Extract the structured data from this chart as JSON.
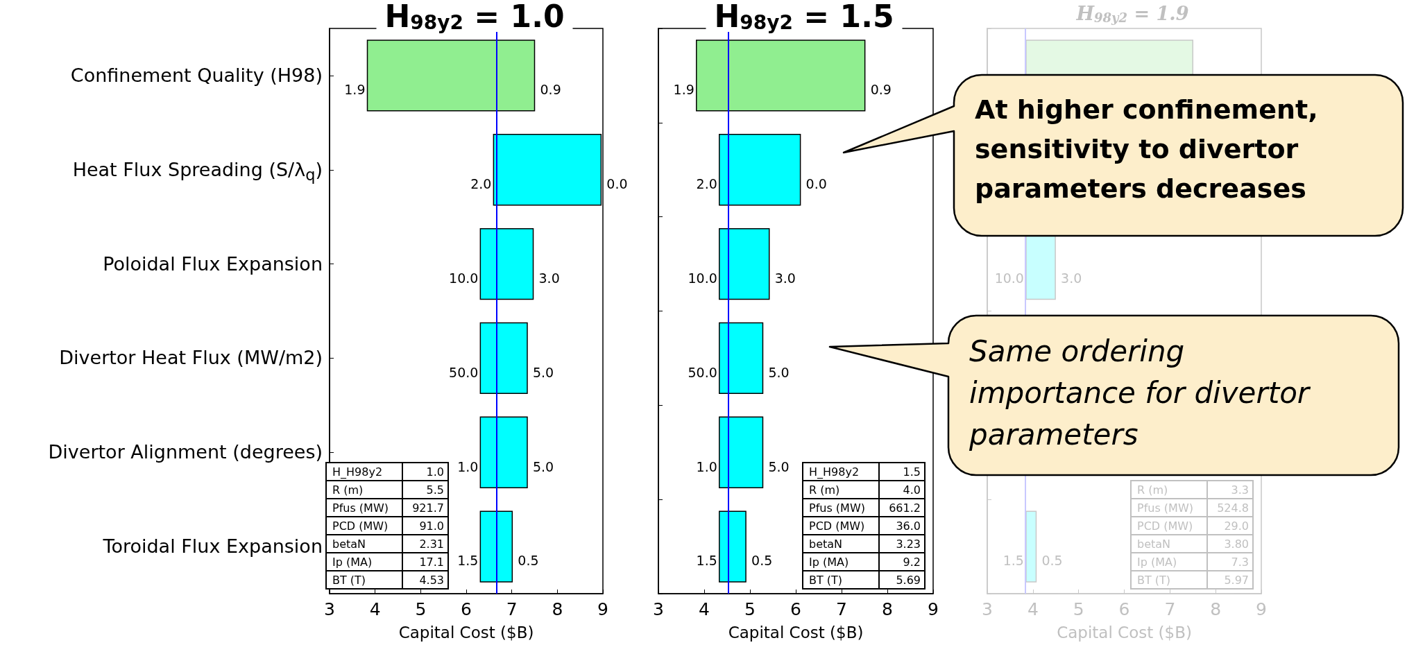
{
  "chart_data": [
    {
      "type": "bar",
      "orientation": "horizontal",
      "title": "H$_{98y2}$ = 1.0",
      "xlabel": "Capital Cost ($B)",
      "categories": [
        "Confinement Quality (H98)",
        "Heat Flux Spreading (S/λ$_{q}$)",
        "Poloidal Flux Expansion",
        "Divertor Heat Flux (MW/m2)",
        "Divertor Alignment (degrees)",
        "Toroidal Flux Expansion"
      ],
      "base": [
        3.83,
        6.6,
        6.31,
        6.31,
        6.31,
        6.31
      ],
      "values": [
        3.67,
        2.36,
        1.16,
        1.03,
        1.03,
        0.7
      ],
      "colors": [
        "#90ee90",
        "#00ffff",
        "#00ffff",
        "#00ffff",
        "#00ffff",
        "#00ffff"
      ],
      "xlim": [
        3,
        9
      ],
      "xticks": [
        3,
        4,
        5,
        6,
        7,
        8,
        9
      ],
      "ref_lines": [
        {
          "axis": "x",
          "value": 6.66,
          "color": "#0000ff"
        }
      ],
      "annotations": [
        {
          "text": "1.9",
          "x": 3.83,
          "y": "Confinement Quality (H98)"
        },
        {
          "text": "0.9",
          "x": 7.5,
          "y": "Confinement Quality (H98)"
        },
        {
          "text": "2.0",
          "x": 6.6,
          "y": "Heat Flux Spreading (S/λ$_{q}$)"
        },
        {
          "text": "0.0",
          "x": 8.96,
          "y": "Heat Flux Spreading (S/λ$_{q}$)"
        },
        {
          "text": "10.0",
          "x": 6.31,
          "y": "Poloidal Flux Expansion"
        },
        {
          "text": "3.0",
          "x": 7.47,
          "y": "Poloidal Flux Expansion"
        },
        {
          "text": "50.0",
          "x": 6.31,
          "y": "Divertor Heat Flux (MW/m2)"
        },
        {
          "text": "5.0",
          "x": 7.34,
          "y": "Divertor Heat Flux (MW/m2)"
        },
        {
          "text": "1.0",
          "x": 6.31,
          "y": "Divertor Alignment (degrees)"
        },
        {
          "text": "5.0",
          "x": 7.34,
          "y": "Divertor Alignment (degrees)"
        },
        {
          "text": "1.5",
          "x": 6.31,
          "y": "Toroidal Flux Expansion"
        },
        {
          "text": "0.5",
          "x": 7.01,
          "y": "Toroidal Flux Expansion"
        },
        "H_H98y2",
        "1.0",
        "R (m)",
        "5.5",
        "Pfus (MW)",
        "921.7",
        "PCD (MW)",
        "91.0",
        "betaN",
        "2.31",
        "Ip (MA)",
        "17.1",
        "BT (T)",
        "4.53"
      ]
    },
    {
      "type": "bar",
      "orientation": "horizontal",
      "title": "H$_{98y2}$ = 1.5",
      "xlabel": "Capital Cost ($B)",
      "tick_labels": "x",
      "categories": [
        "Confinement Quality (H98)",
        "Heat Flux Spreading (S/λ$_{q}$)",
        "Poloidal Flux Expansion",
        "Divertor Heat Flux (MW/m2)",
        "Divertor Alignment (degrees)",
        "Toroidal Flux Expansion"
      ],
      "base": [
        3.83,
        4.33,
        4.33,
        4.33,
        4.33,
        4.33
      ],
      "values": [
        3.68,
        1.77,
        1.09,
        0.95,
        0.95,
        0.58
      ],
      "colors": [
        "#90ee90",
        "#00ffff",
        "#00ffff",
        "#00ffff",
        "#00ffff",
        "#00ffff"
      ],
      "xlim": [
        3,
        9
      ],
      "xticks": [
        3,
        4,
        5,
        6,
        7,
        8,
        9
      ],
      "ref_lines": [
        {
          "axis": "x",
          "value": 4.52,
          "color": "#0000ff"
        }
      ],
      "annotations": [
        {
          "text": "1.9",
          "x": 3.83,
          "y": "Confinement Quality (H98)"
        },
        {
          "text": "0.9",
          "x": 7.51,
          "y": "Confinement Quality (H98)"
        },
        {
          "text": "2.0",
          "x": 4.33,
          "y": "Heat Flux Spreading (S/λ$_{q}$)"
        },
        {
          "text": "0.0",
          "x": 6.1,
          "y": "Heat Flux Spreading (S/λ$_{q}$)"
        },
        {
          "text": "10.0",
          "x": 4.33,
          "y": "Poloidal Flux Expansion"
        },
        {
          "text": "3.0",
          "x": 5.42,
          "y": "Poloidal Flux Expansion"
        },
        {
          "text": "50.0",
          "x": 4.33,
          "y": "Divertor Heat Flux (MW/m2)"
        },
        {
          "text": "5.0",
          "x": 5.28,
          "y": "Divertor Heat Flux (MW/m2)"
        },
        {
          "text": "1.0",
          "x": 4.33,
          "y": "Divertor Alignment (degrees)"
        },
        {
          "text": "5.0",
          "x": 5.28,
          "y": "Divertor Alignment (degrees)"
        },
        {
          "text": "1.5",
          "x": 4.33,
          "y": "Toroidal Flux Expansion"
        },
        {
          "text": "0.5",
          "x": 4.91,
          "y": "Toroidal Flux Expansion"
        },
        "H_H98y2",
        "1.5",
        "R (m)",
        "4.0",
        "Pfus (MW)",
        "661.2",
        "PCD (MW)",
        "36.0",
        "betaN",
        "3.23",
        "Ip (MA)",
        "9.2",
        "BT (T)",
        "5.69"
      ]
    },
    {
      "type": "bar",
      "orientation": "horizontal",
      "title": "H$_{98y2}$ = 1.9",
      "xlabel": "Capital Cost ($B)",
      "tick_labels": "x",
      "categories": [
        "Confinement Quality (H98)",
        "Heat Flux Spreading (S/λ$_{q}$)",
        "Poloidal Flux Expansion",
        "Divertor Heat Flux (MW/m2)",
        "Divertor Alignment (degrees)",
        "Toroidal Flux Expansion"
      ],
      "base": [
        3.85,
        null,
        3.85,
        null,
        null,
        3.85
      ],
      "values": [
        3.65,
        null,
        0.64,
        null,
        null,
        0.22
      ],
      "colors": [
        "#e4f9e4",
        null,
        "#c8ffff",
        null,
        null,
        "#c8ffff"
      ],
      "xlim": [
        3,
        9
      ],
      "xticks": [
        3,
        4,
        5,
        6,
        7,
        8,
        9
      ],
      "ref_lines": [
        {
          "axis": "x",
          "value": 3.83,
          "color": "#c8c8ff"
        }
      ],
      "annotations": [
        {
          "text": "10.0",
          "x": 3.85,
          "y": "Poloidal Flux Expansion"
        },
        {
          "text": "3.0",
          "x": 4.49,
          "y": "Poloidal Flux Expansion"
        },
        {
          "text": "1.5",
          "x": 3.85,
          "y": "Toroidal Flux Expansion"
        },
        {
          "text": "0.5",
          "x": 4.07,
          "y": "Toroidal Flux Expansion"
        },
        "R (m)",
        "3.3",
        "Pfus (MW)",
        "524.8",
        "PCD (MW)",
        "29.0",
        "betaN",
        "3.80",
        "Ip (MA)",
        "7.3",
        "BT (T)",
        "5.97"
      ]
    },
    {
      "type": "other",
      "annotations": [
        "At higher confinement, sensitivity to divertor parameters decreases",
        "Same ordering importance for divertor parameters"
      ]
    }
  ]
}
